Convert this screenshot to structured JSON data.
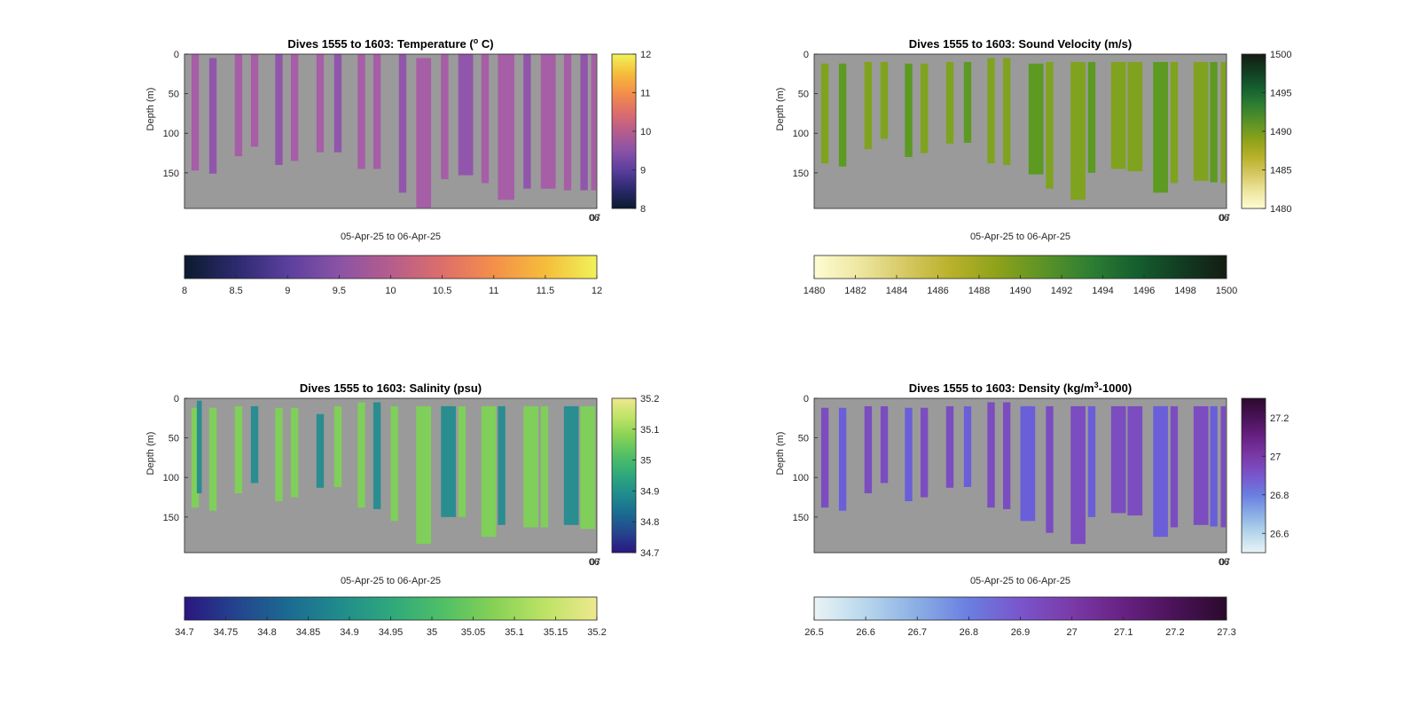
{
  "figure": {
    "background": "#ffffff"
  },
  "chart_data": [
    {
      "type": "heatmap",
      "title": "Dives 1555 to 1603: Temperature (",
      "title_sup": "o",
      "title_suffix": " C)",
      "xlabel": "05-Apr-25 to 06-Apr-25",
      "ylabel": "Depth (m)",
      "ylim": [
        0,
        195
      ],
      "yticks": [
        0,
        50,
        100,
        150
      ],
      "xtick_labels": [
        "06",
        "07"
      ],
      "background": "#9a9a9a",
      "bar_color": "#a65ea6",
      "bar_color_alt": "#9156ab",
      "colorbar_right": {
        "range": [
          8,
          12
        ],
        "ticks": [
          8,
          9,
          10,
          11,
          12
        ]
      },
      "colorbar_bottom": {
        "range": [
          8,
          12
        ],
        "ticks": [
          "8",
          "8.5",
          "9",
          "9.5",
          "10",
          "10.5",
          "11",
          "11.5",
          "12"
        ]
      },
      "colormap": [
        "#0b1a2e",
        "#2c2a6e",
        "#5b3f9e",
        "#8a53a6",
        "#b65d8c",
        "#dd6e6a",
        "#f48f4a",
        "#f5bd3a",
        "#f1f25a"
      ],
      "profiles": [
        {
          "x": 0.017,
          "w": 0.018,
          "top": 0,
          "bottom": 147
        },
        {
          "x": 0.06,
          "w": 0.018,
          "top": 5,
          "bottom": 151
        },
        {
          "x": 0.122,
          "w": 0.018,
          "top": 0,
          "bottom": 129
        },
        {
          "x": 0.161,
          "w": 0.018,
          "top": 0,
          "bottom": 117
        },
        {
          "x": 0.22,
          "w": 0.018,
          "top": 0,
          "bottom": 140
        },
        {
          "x": 0.258,
          "w": 0.018,
          "top": 0,
          "bottom": 135
        },
        {
          "x": 0.32,
          "w": 0.018,
          "top": 0,
          "bottom": 124
        },
        {
          "x": 0.363,
          "w": 0.018,
          "top": 0,
          "bottom": 124
        },
        {
          "x": 0.42,
          "w": 0.018,
          "top": 0,
          "bottom": 145
        },
        {
          "x": 0.458,
          "w": 0.018,
          "top": 0,
          "bottom": 145
        },
        {
          "x": 0.52,
          "w": 0.018,
          "top": 0,
          "bottom": 175
        },
        {
          "x": 0.562,
          "w": 0.036,
          "top": 5,
          "bottom": 194
        },
        {
          "x": 0.622,
          "w": 0.018,
          "top": 0,
          "bottom": 158
        },
        {
          "x": 0.664,
          "w": 0.036,
          "top": 0,
          "bottom": 153
        },
        {
          "x": 0.72,
          "w": 0.018,
          "top": 0,
          "bottom": 163
        },
        {
          "x": 0.76,
          "w": 0.04,
          "top": 0,
          "bottom": 184
        },
        {
          "x": 0.822,
          "w": 0.018,
          "top": 0,
          "bottom": 170
        },
        {
          "x": 0.864,
          "w": 0.036,
          "top": 0,
          "bottom": 170
        },
        {
          "x": 0.92,
          "w": 0.018,
          "top": 0,
          "bottom": 172
        },
        {
          "x": 0.96,
          "w": 0.018,
          "top": 0,
          "bottom": 172
        },
        {
          "x": 0.986,
          "w": 0.012,
          "top": 0,
          "bottom": 172
        }
      ]
    },
    {
      "type": "heatmap",
      "title": "Dives 1555 to 1603: Sound Velocity (m/s)",
      "title_sup": "",
      "title_suffix": "",
      "xlabel": "05-Apr-25 to 06-Apr-25",
      "ylabel": "Depth (m)",
      "ylim": [
        0,
        195
      ],
      "yticks": [
        0,
        50,
        100,
        150
      ],
      "xtick_labels": [
        "06",
        "07"
      ],
      "background": "#9a9a9a",
      "bar_color": "#7fa31e",
      "bar_color_alt": "#5c9a22",
      "colorbar_right": {
        "range": [
          1480,
          1500
        ],
        "ticks": [
          1480,
          1485,
          1490,
          1495,
          1500
        ]
      },
      "colorbar_bottom": {
        "range": [
          1480,
          1500
        ],
        "ticks": [
          "1480",
          "1482",
          "1484",
          "1486",
          "1488",
          "1490",
          "1492",
          "1494",
          "1496",
          "1498",
          "1500"
        ]
      },
      "colormap": [
        "#fefcd2",
        "#ede6a0",
        "#d6c862",
        "#b8b12a",
        "#8da21a",
        "#5c9326",
        "#2f7f32",
        "#15602f",
        "#123d22",
        "#141c12"
      ],
      "profiles": [
        {
          "x": 0.017,
          "w": 0.018,
          "top": 12,
          "bottom": 138
        },
        {
          "x": 0.06,
          "w": 0.018,
          "top": 12,
          "bottom": 142
        },
        {
          "x": 0.122,
          "w": 0.018,
          "top": 10,
          "bottom": 120
        },
        {
          "x": 0.161,
          "w": 0.018,
          "top": 10,
          "bottom": 107
        },
        {
          "x": 0.22,
          "w": 0.018,
          "top": 12,
          "bottom": 130
        },
        {
          "x": 0.258,
          "w": 0.018,
          "top": 12,
          "bottom": 125
        },
        {
          "x": 0.32,
          "w": 0.018,
          "top": 10,
          "bottom": 113
        },
        {
          "x": 0.363,
          "w": 0.018,
          "top": 10,
          "bottom": 112
        },
        {
          "x": 0.42,
          "w": 0.018,
          "top": 5,
          "bottom": 138
        },
        {
          "x": 0.458,
          "w": 0.018,
          "top": 5,
          "bottom": 140
        },
        {
          "x": 0.52,
          "w": 0.036,
          "top": 12,
          "bottom": 152
        },
        {
          "x": 0.562,
          "w": 0.018,
          "top": 10,
          "bottom": 170
        },
        {
          "x": 0.622,
          "w": 0.036,
          "top": 10,
          "bottom": 184
        },
        {
          "x": 0.664,
          "w": 0.018,
          "top": 10,
          "bottom": 150
        },
        {
          "x": 0.72,
          "w": 0.036,
          "top": 10,
          "bottom": 145
        },
        {
          "x": 0.76,
          "w": 0.036,
          "top": 10,
          "bottom": 148
        },
        {
          "x": 0.822,
          "w": 0.036,
          "top": 10,
          "bottom": 175
        },
        {
          "x": 0.864,
          "w": 0.018,
          "top": 10,
          "bottom": 163
        },
        {
          "x": 0.92,
          "w": 0.036,
          "top": 10,
          "bottom": 160
        },
        {
          "x": 0.96,
          "w": 0.018,
          "top": 10,
          "bottom": 162
        },
        {
          "x": 0.986,
          "w": 0.012,
          "top": 10,
          "bottom": 163
        }
      ]
    },
    {
      "type": "heatmap",
      "title": "Dives 1555 to 1603: Salinity (psu)",
      "title_sup": "",
      "title_suffix": "",
      "xlabel": "05-Apr-25 to 06-Apr-25",
      "ylabel": "Depth (m)",
      "ylim": [
        0,
        195
      ],
      "yticks": [
        0,
        50,
        100,
        150
      ],
      "xtick_labels": [
        "06",
        "07"
      ],
      "background": "#9a9a9a",
      "bar_color": "#7fcf5a",
      "bar_color_alt": "#2a8d8f",
      "colorbar_right": {
        "range": [
          34.7,
          35.2
        ],
        "ticks": [
          34.7,
          34.8,
          34.9,
          35,
          35.1,
          35.2
        ]
      },
      "colorbar_bottom": {
        "range": [
          34.7,
          35.2
        ],
        "ticks": [
          "34.7",
          "34.75",
          "34.8",
          "34.85",
          "34.9",
          "34.95",
          "35",
          "35.05",
          "35.1",
          "35.15",
          "35.2"
        ]
      },
      "colormap": [
        "#2a1680",
        "#24448e",
        "#1b6a92",
        "#208b8c",
        "#2ea87c",
        "#4fbf66",
        "#86d155",
        "#bde365",
        "#eee88e"
      ],
      "profiles": [
        {
          "x": 0.017,
          "w": 0.018,
          "top": 12,
          "bottom": 138
        },
        {
          "x": 0.03,
          "w": 0.012,
          "top": 3,
          "bottom": 120
        },
        {
          "x": 0.06,
          "w": 0.018,
          "top": 12,
          "bottom": 142
        },
        {
          "x": 0.122,
          "w": 0.018,
          "top": 10,
          "bottom": 120
        },
        {
          "x": 0.161,
          "w": 0.018,
          "top": 10,
          "bottom": 107
        },
        {
          "x": 0.22,
          "w": 0.018,
          "top": 12,
          "bottom": 130
        },
        {
          "x": 0.258,
          "w": 0.018,
          "top": 12,
          "bottom": 125
        },
        {
          "x": 0.32,
          "w": 0.018,
          "top": 20,
          "bottom": 113
        },
        {
          "x": 0.363,
          "w": 0.018,
          "top": 10,
          "bottom": 112
        },
        {
          "x": 0.42,
          "w": 0.018,
          "top": 5,
          "bottom": 138
        },
        {
          "x": 0.458,
          "w": 0.018,
          "top": 5,
          "bottom": 140
        },
        {
          "x": 0.5,
          "w": 0.018,
          "top": 10,
          "bottom": 155
        },
        {
          "x": 0.562,
          "w": 0.036,
          "top": 10,
          "bottom": 184
        },
        {
          "x": 0.622,
          "w": 0.036,
          "top": 10,
          "bottom": 150
        },
        {
          "x": 0.664,
          "w": 0.018,
          "top": 10,
          "bottom": 150
        },
        {
          "x": 0.72,
          "w": 0.036,
          "top": 10,
          "bottom": 175
        },
        {
          "x": 0.76,
          "w": 0.018,
          "top": 10,
          "bottom": 160
        },
        {
          "x": 0.822,
          "w": 0.036,
          "top": 10,
          "bottom": 163
        },
        {
          "x": 0.864,
          "w": 0.018,
          "top": 10,
          "bottom": 163
        },
        {
          "x": 0.92,
          "w": 0.036,
          "top": 10,
          "bottom": 160
        },
        {
          "x": 0.96,
          "w": 0.036,
          "top": 10,
          "bottom": 165
        }
      ]
    },
    {
      "type": "heatmap",
      "title": "Dives 1555 to 1603: Density (kg/m",
      "title_sup": "3",
      "title_suffix": "-1000)",
      "xlabel": "05-Apr-25 to 06-Apr-25",
      "ylabel": "Depth (m)",
      "ylim": [
        0,
        195
      ],
      "yticks": [
        0,
        50,
        100,
        150
      ],
      "xtick_labels": [
        "06",
        "07"
      ],
      "background": "#9a9a9a",
      "bar_color": "#7b4dc0",
      "bar_color_alt": "#6a5fd8",
      "colorbar_right": {
        "range": [
          26.5,
          27.3
        ],
        "ticks": [
          "26.6",
          "26.8",
          "27",
          "27.2"
        ]
      },
      "colorbar_bottom": {
        "range": [
          26.5,
          27.3
        ],
        "ticks": [
          "26.5",
          "26.6",
          "26.7",
          "26.8",
          "26.9",
          "27",
          "27.1",
          "27.2",
          "27.3"
        ]
      },
      "colormap": [
        "#e9f4f6",
        "#b7d6ec",
        "#8aaee4",
        "#6a7ee0",
        "#7a55cc",
        "#7a3aa8",
        "#682183",
        "#4a1258",
        "#2b0a2c"
      ],
      "profiles": [
        {
          "x": 0.017,
          "w": 0.018,
          "top": 12,
          "bottom": 138
        },
        {
          "x": 0.06,
          "w": 0.018,
          "top": 12,
          "bottom": 142
        },
        {
          "x": 0.122,
          "w": 0.018,
          "top": 10,
          "bottom": 120
        },
        {
          "x": 0.161,
          "w": 0.018,
          "top": 10,
          "bottom": 107
        },
        {
          "x": 0.22,
          "w": 0.018,
          "top": 12,
          "bottom": 130
        },
        {
          "x": 0.258,
          "w": 0.018,
          "top": 12,
          "bottom": 125
        },
        {
          "x": 0.32,
          "w": 0.018,
          "top": 10,
          "bottom": 113
        },
        {
          "x": 0.363,
          "w": 0.018,
          "top": 10,
          "bottom": 112
        },
        {
          "x": 0.42,
          "w": 0.018,
          "top": 5,
          "bottom": 138
        },
        {
          "x": 0.458,
          "w": 0.018,
          "top": 5,
          "bottom": 140
        },
        {
          "x": 0.5,
          "w": 0.036,
          "top": 10,
          "bottom": 155
        },
        {
          "x": 0.562,
          "w": 0.018,
          "top": 10,
          "bottom": 170
        },
        {
          "x": 0.622,
          "w": 0.036,
          "top": 10,
          "bottom": 184
        },
        {
          "x": 0.664,
          "w": 0.018,
          "top": 10,
          "bottom": 150
        },
        {
          "x": 0.72,
          "w": 0.036,
          "top": 10,
          "bottom": 145
        },
        {
          "x": 0.76,
          "w": 0.036,
          "top": 10,
          "bottom": 148
        },
        {
          "x": 0.822,
          "w": 0.036,
          "top": 10,
          "bottom": 175
        },
        {
          "x": 0.864,
          "w": 0.018,
          "top": 10,
          "bottom": 163
        },
        {
          "x": 0.92,
          "w": 0.036,
          "top": 10,
          "bottom": 160
        },
        {
          "x": 0.96,
          "w": 0.018,
          "top": 10,
          "bottom": 162
        },
        {
          "x": 0.986,
          "w": 0.012,
          "top": 10,
          "bottom": 163
        }
      ]
    }
  ]
}
